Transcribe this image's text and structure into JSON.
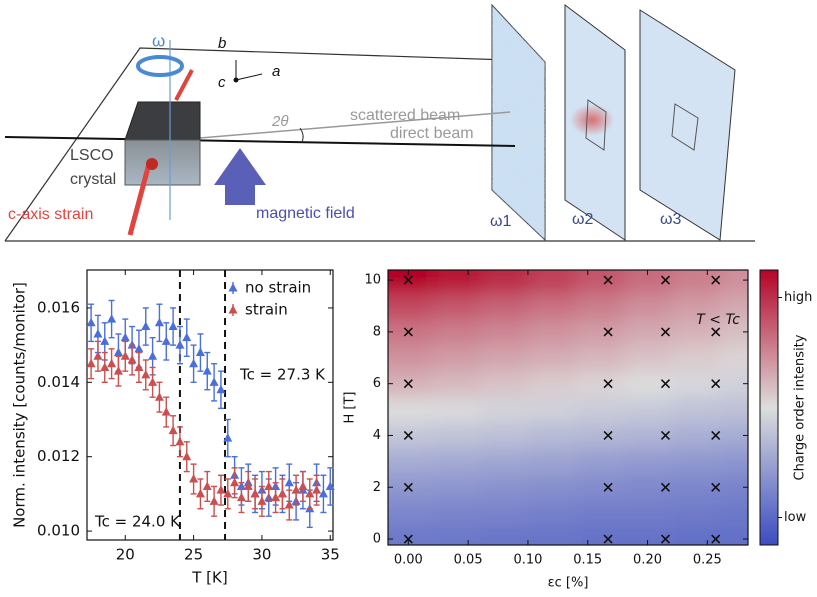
{
  "diagram": {
    "omega": "ω",
    "axis_b": "b",
    "axis_c": "c",
    "axis_a": "a",
    "two_theta": "2θ",
    "scattered": "scattered beam",
    "direct": "direct beam",
    "lsco": "LSCO",
    "crystal": "crystal",
    "strain": "c-axis strain",
    "field": "magnetic field",
    "omega1": "ω1",
    "omega2": "ω2",
    "omega3": "ω3"
  },
  "chart_data": [
    {
      "type": "scatter",
      "xlabel": "T [K]",
      "ylabel": "Norm. intensity [counts/monitor]",
      "xlim": [
        17.2,
        35.2
      ],
      "xticks": [
        20,
        25,
        30,
        35
      ],
      "ylim": [
        0.00976,
        0.01702
      ],
      "yticks": [
        {
          "value": 0.01,
          "label": "0.010"
        },
        0.012,
        0.014,
        0.016
      ],
      "legend": "upper right",
      "vlines": [
        {
          "value": 24.0,
          "label": "Tc = 24.0 K"
        },
        {
          "value": 27.3,
          "label": "Tc = 27.3 K"
        }
      ],
      "series": [
        {
          "name": "no strain",
          "color": "#4a6fdc",
          "error": 0.0005,
          "x": [
            17.5,
            18,
            18.5,
            19,
            19.5,
            20,
            20.5,
            21,
            21.5,
            22,
            22.5,
            23,
            23.5,
            24,
            24.5,
            25,
            25.5,
            26,
            26.5,
            27,
            27.5,
            28,
            28.5,
            29,
            29.5,
            30,
            30.5,
            31,
            31.5,
            32,
            32.5,
            33,
            33.5,
            34,
            34.5,
            35
          ],
          "values": [
            0.0156,
            0.0153,
            0.0151,
            0.0157,
            0.0148,
            0.0152,
            0.015,
            0.0149,
            0.0155,
            0.0147,
            0.0156,
            0.0151,
            0.0155,
            0.015,
            0.0152,
            0.0145,
            0.0148,
            0.0143,
            0.014,
            0.0138,
            0.0125,
            0.0115,
            0.0112,
            0.0113,
            0.011,
            0.0111,
            0.0109,
            0.0112,
            0.011,
            0.0113,
            0.0108,
            0.0111,
            0.0106,
            0.0113,
            0.011,
            0.0112
          ]
        },
        {
          "name": "strain",
          "color": "#c9504f",
          "error": 0.0004,
          "x": [
            17.5,
            18,
            18.5,
            19,
            19.5,
            20,
            20.5,
            21,
            21.5,
            22,
            22.5,
            23,
            23.5,
            24,
            24.5,
            25,
            25.5,
            26,
            26.5,
            27,
            27.5,
            28,
            28.5,
            29,
            29.5,
            30,
            30.5,
            31,
            31.5,
            32,
            32.5,
            33,
            33.5,
            34
          ],
          "values": [
            0.0145,
            0.0147,
            0.0144,
            0.0145,
            0.0143,
            0.0147,
            0.0146,
            0.0144,
            0.0142,
            0.014,
            0.0136,
            0.0132,
            0.0127,
            0.0124,
            0.012,
            0.0114,
            0.011,
            0.0112,
            0.0108,
            0.0111,
            0.011,
            0.0113,
            0.0109,
            0.0112,
            0.011,
            0.0108,
            0.0112,
            0.0109,
            0.011,
            0.0107,
            0.0111,
            0.0112,
            0.011,
            0.0111
          ]
        }
      ]
    },
    {
      "type": "heatmap",
      "xlabel": "εc [%]",
      "ylabel": "H [T]",
      "annotation": "T < Tc",
      "colorbar_label": "Charge order intensity",
      "xlim": [
        -0.017,
        0.284
      ],
      "xticks": [
        {
          "value": 0,
          "label": "0.00"
        },
        0.05,
        {
          "value": 0.1,
          "label": "0.10"
        },
        0.15,
        {
          "value": 0.2,
          "label": "0.20"
        },
        0.25
      ],
      "ylim": [
        -0.23,
        10.39
      ],
      "yticks": [
        0,
        2,
        4,
        6,
        8,
        10
      ],
      "colormap": [
        "#3b4cc0",
        "#dddddd",
        "#b40426"
      ],
      "clim": [
        0,
        1
      ],
      "cticks": [
        {
          "value": 0.1,
          "label": "low"
        },
        {
          "value": 0.9,
          "label": "high"
        }
      ],
      "zx": [
        0,
        0.04,
        0.08,
        0.12,
        0.16,
        0.2,
        0.24,
        0.28
      ],
      "zy": [
        0,
        1,
        2,
        3,
        4,
        5,
        6,
        7,
        8,
        9,
        10
      ],
      "z": [
        [
          0.15,
          0.15,
          0.14,
          0.14,
          0.13,
          0.13,
          0.12,
          0.12
        ],
        [
          0.2,
          0.19,
          0.19,
          0.18,
          0.17,
          0.17,
          0.16,
          0.15
        ],
        [
          0.26,
          0.25,
          0.24,
          0.23,
          0.22,
          0.21,
          0.2,
          0.19
        ],
        [
          0.33,
          0.32,
          0.31,
          0.3,
          0.28,
          0.27,
          0.26,
          0.25
        ],
        [
          0.42,
          0.41,
          0.4,
          0.38,
          0.37,
          0.36,
          0.34,
          0.33
        ],
        [
          0.5,
          0.49,
          0.47,
          0.46,
          0.44,
          0.43,
          0.41,
          0.4
        ],
        [
          0.6,
          0.58,
          0.56,
          0.54,
          0.52,
          0.5,
          0.48,
          0.46
        ],
        [
          0.67,
          0.65,
          0.63,
          0.61,
          0.59,
          0.56,
          0.54,
          0.52
        ],
        [
          0.74,
          0.72,
          0.7,
          0.67,
          0.65,
          0.62,
          0.6,
          0.57
        ],
        [
          0.84,
          0.81,
          0.78,
          0.75,
          0.72,
          0.68,
          0.65,
          0.62
        ],
        [
          1.0,
          0.96,
          0.91,
          0.86,
          0.81,
          0.76,
          0.72,
          0.68
        ]
      ],
      "points": {
        "x": [
          0,
          0,
          0,
          0,
          0,
          0,
          0.167,
          0.167,
          0.167,
          0.167,
          0.167,
          0.167,
          0.215,
          0.215,
          0.215,
          0.215,
          0.215,
          0.215,
          0.257,
          0.257,
          0.257,
          0.257,
          0.257,
          0.257
        ],
        "y": [
          0,
          2,
          4,
          6,
          8,
          10,
          0,
          2,
          4,
          6,
          8,
          10,
          0,
          2,
          4,
          6,
          8,
          10,
          0,
          2,
          4,
          6,
          8,
          10
        ]
      }
    }
  ]
}
